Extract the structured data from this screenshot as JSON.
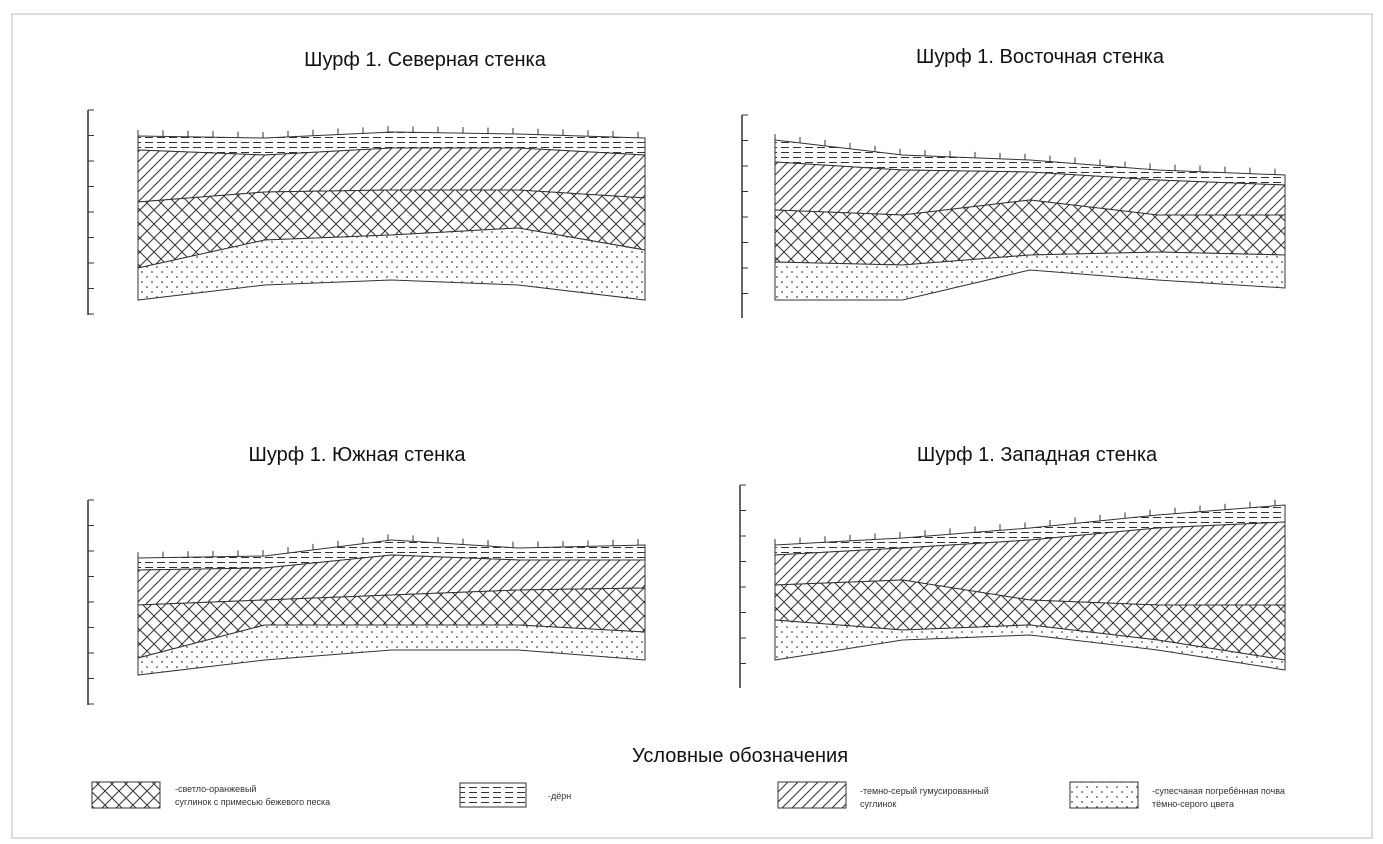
{
  "panels": [
    {
      "title": "Шурф 1. Северная стенка"
    },
    {
      "title": "Шурф 1. Восточная стенка"
    },
    {
      "title": "Шурф 1. Южная стенка"
    },
    {
      "title": "Шурф 1. Западная стенка"
    }
  ],
  "legend": {
    "title": "Условные обозначения",
    "items": [
      {
        "lines": [
          "-светло-оранжевый",
          "суглинок с примесью бежевого песка"
        ]
      },
      {
        "lines": [
          "-дёрн"
        ]
      },
      {
        "lines": [
          "-темно-серый гумусированный",
          "суглинок"
        ]
      },
      {
        "lines": [
          "-супесчаная погребённая почва",
          "тёмно-серого цвета"
        ]
      }
    ]
  }
}
